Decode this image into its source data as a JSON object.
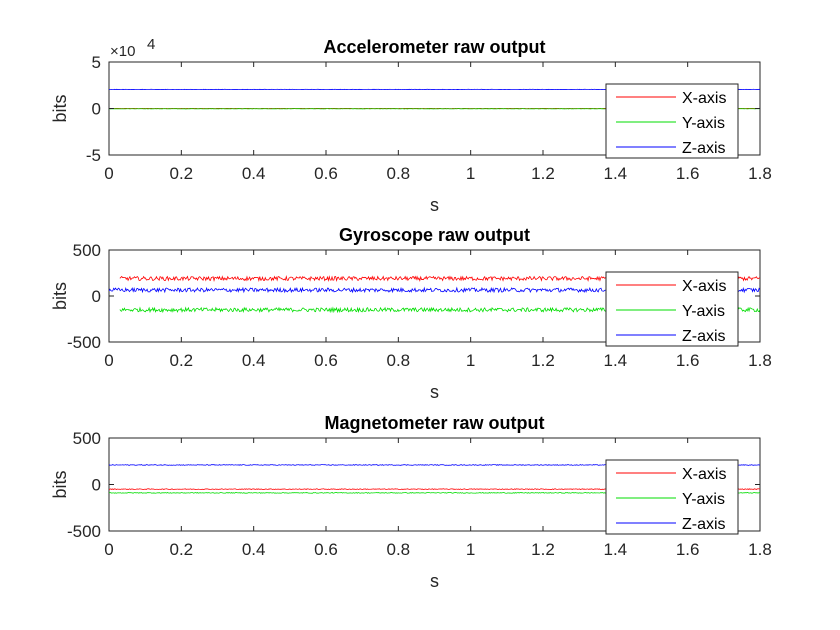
{
  "chart_data": [
    {
      "type": "line",
      "title": "Accelerometer raw output",
      "xlabel": "s",
      "ylabel": "bits",
      "xlim": [
        0,
        1.8
      ],
      "ylim": [
        -50000,
        50000
      ],
      "xticks": [
        0,
        0.2,
        0.4,
        0.6,
        0.8,
        1,
        1.2,
        1.4,
        1.6,
        1.8
      ],
      "xtick_labels": [
        "0",
        "0.2",
        "0.4",
        "0.6",
        "0.8",
        "1",
        "1.2",
        "1.4",
        "1.6",
        "1.8"
      ],
      "yticks": [
        -50000,
        0,
        50000
      ],
      "ytick_labels": [
        "-5",
        "0",
        "5"
      ],
      "y_exponent_base": "×10",
      "y_exponent_power": "4",
      "legend_position": "right",
      "series": [
        {
          "name": "X-axis",
          "color": "#ff0000",
          "mean": 0,
          "noise": 150,
          "x_range": [
            0,
            1.8
          ]
        },
        {
          "name": "Y-axis",
          "color": "#00dd00",
          "mean": -300,
          "noise": 150,
          "x_range": [
            0,
            1.8
          ]
        },
        {
          "name": "Z-axis",
          "color": "#0000ff",
          "mean": 20500,
          "noise": 150,
          "x_range": [
            0,
            1.8
          ]
        }
      ]
    },
    {
      "type": "line",
      "title": "Gyroscope raw output",
      "xlabel": "s",
      "ylabel": "bits",
      "xlim": [
        0,
        1.8
      ],
      "ylim": [
        -500,
        500
      ],
      "xticks": [
        0,
        0.2,
        0.4,
        0.6,
        0.8,
        1,
        1.2,
        1.4,
        1.6,
        1.8
      ],
      "xtick_labels": [
        "0",
        "0.2",
        "0.4",
        "0.6",
        "0.8",
        "1",
        "1.2",
        "1.4",
        "1.6",
        "1.8"
      ],
      "yticks": [
        -500,
        0,
        500
      ],
      "ytick_labels": [
        "-500",
        "0",
        "500"
      ],
      "legend_position": "right",
      "series": [
        {
          "name": "X-axis",
          "color": "#ff0000",
          "mean": 190,
          "noise": 22,
          "x_range": [
            0.03,
            1.8
          ]
        },
        {
          "name": "Y-axis",
          "color": "#00dd00",
          "mean": -150,
          "noise": 22,
          "x_range": [
            0.03,
            1.8
          ]
        },
        {
          "name": "Z-axis",
          "color": "#0000ff",
          "mean": 65,
          "noise": 22,
          "x_range": [
            0,
            1.8
          ]
        }
      ]
    },
    {
      "type": "line",
      "title": "Magnetometer raw output",
      "xlabel": "s",
      "ylabel": "bits",
      "xlim": [
        0,
        1.8
      ],
      "ylim": [
        -500,
        500
      ],
      "xticks": [
        0,
        0.2,
        0.4,
        0.6,
        0.8,
        1,
        1.2,
        1.4,
        1.6,
        1.8
      ],
      "xtick_labels": [
        "0",
        "0.2",
        "0.4",
        "0.6",
        "0.8",
        "1",
        "1.2",
        "1.4",
        "1.6",
        "1.8"
      ],
      "yticks": [
        -500,
        0,
        500
      ],
      "ytick_labels": [
        "-500",
        "0",
        "500"
      ],
      "legend_position": "right",
      "series": [
        {
          "name": "X-axis",
          "color": "#ff0000",
          "mean": -50,
          "noise": 4,
          "x_range": [
            0,
            1.8
          ]
        },
        {
          "name": "Y-axis",
          "color": "#00dd00",
          "mean": -90,
          "noise": 4,
          "x_range": [
            0,
            1.8
          ]
        },
        {
          "name": "Z-axis",
          "color": "#0000ff",
          "mean": 210,
          "noise": 4,
          "x_range": [
            0,
            1.8
          ]
        }
      ]
    }
  ]
}
